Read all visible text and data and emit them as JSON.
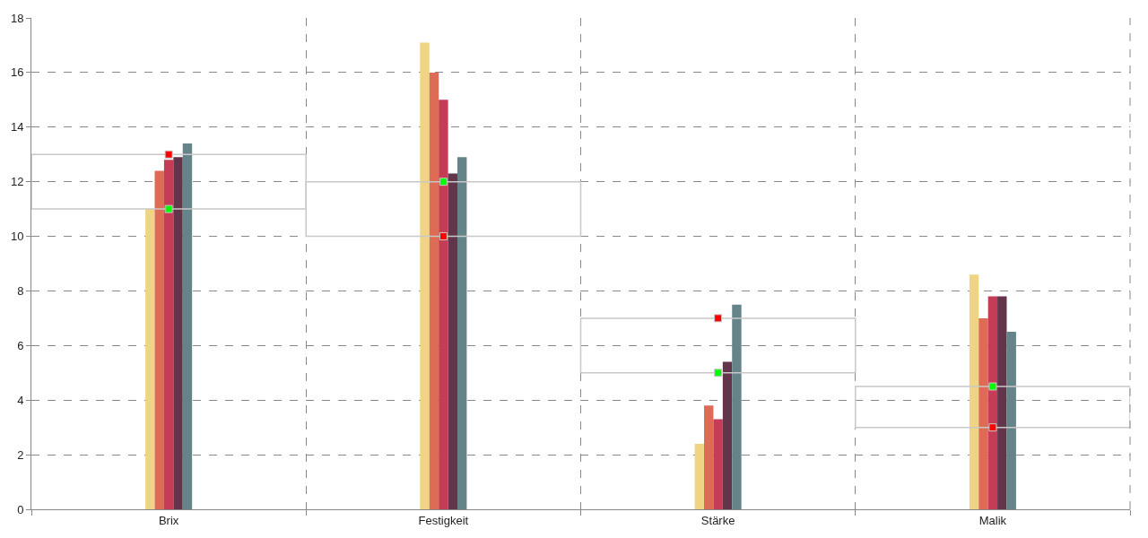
{
  "chart_data": {
    "type": "bar",
    "categories": [
      "Brix",
      "Festigkeit",
      "Stärke",
      "Malik"
    ],
    "series": [
      {
        "color": "#c8c8c8",
        "type": "bar",
        "base": [
          11,
          10,
          5,
          3
        ],
        "values": [
          2,
          2,
          2,
          1.5
        ]
      },
      {
        "color": "#eed484",
        "values": [
          11,
          17.1,
          2.4,
          8.6
        ]
      },
      {
        "color": "#dd6b55",
        "values": [
          12.4,
          16.0,
          3.8,
          7.0
        ]
      },
      {
        "color": "#c43c55",
        "values": [
          12.8,
          15.0,
          3.3,
          7.8
        ]
      },
      {
        "color": "#63354a",
        "values": [
          12.9,
          12.3,
          5.4,
          7.8
        ]
      },
      {
        "color": "#64848a",
        "values": [
          13.4,
          12.9,
          7.5,
          6.5
        ]
      },
      {
        "color": "#ff0000",
        "type": "scatter",
        "marker": "square",
        "values": [
          13,
          10,
          7,
          3
        ]
      },
      {
        "color": "#00ff00",
        "type": "scatter",
        "marker": "square",
        "values": [
          11,
          12,
          5,
          4.5
        ]
      }
    ],
    "ylim": [
      0,
      18
    ],
    "yticks": [
      0,
      2,
      4,
      6,
      8,
      10,
      12,
      14,
      16,
      18
    ],
    "grid": true
  }
}
